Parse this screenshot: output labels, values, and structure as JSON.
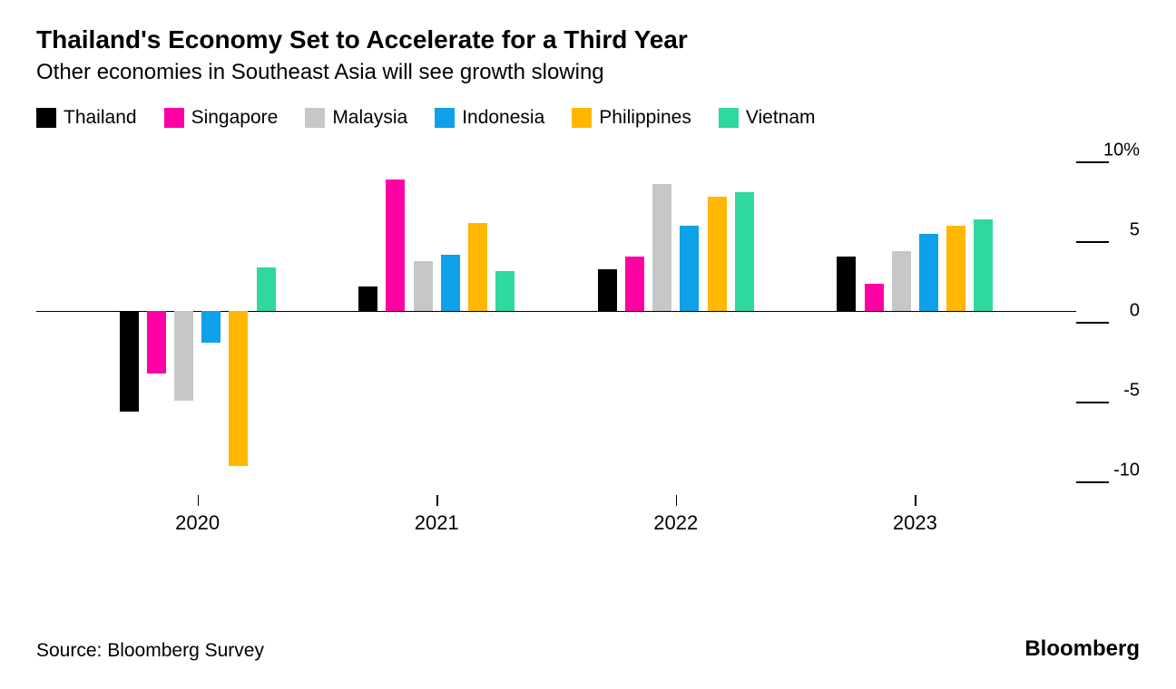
{
  "title": "Thailand's Economy Set to Accelerate for a Third Year",
  "subtitle": "Other economies in Southeast Asia will see growth slowing",
  "source": "Source: Bloomberg Survey",
  "brand": "Bloomberg",
  "chart": {
    "type": "bar",
    "y_axis": {
      "min": -11.5,
      "max": 10,
      "ticks": [
        {
          "value": 10,
          "label": "10%"
        },
        {
          "value": 5,
          "label": "5"
        },
        {
          "value": 0,
          "label": "0"
        },
        {
          "value": -5,
          "label": "-5"
        },
        {
          "value": -10,
          "label": "-10"
        }
      ]
    },
    "series": [
      {
        "name": "Thailand",
        "color": "#000000"
      },
      {
        "name": "Singapore",
        "color": "#ff00a5"
      },
      {
        "name": "Malaysia",
        "color": "#c7c7c9"
      },
      {
        "name": "Indonesia",
        "color": "#0ea0e8"
      },
      {
        "name": "Philippines",
        "color": "#ffb700"
      },
      {
        "name": "Vietnam",
        "color": "#2fd8a0"
      }
    ],
    "categories": [
      "2020",
      "2021",
      "2022",
      "2023"
    ],
    "data": {
      "2020": [
        -6.3,
        -3.9,
        -5.6,
        -2.0,
        -9.7,
        2.7
      ],
      "2021": [
        1.5,
        8.2,
        3.1,
        3.5,
        5.5,
        2.5
      ],
      "2022": [
        2.6,
        3.4,
        7.9,
        5.3,
        7.1,
        7.4
      ],
      "2023": [
        3.4,
        1.7,
        3.7,
        4.8,
        5.3,
        5.7
      ]
    },
    "layout": {
      "group_gap_pct": 8,
      "bar_gap_pct": 0.8,
      "title_fontsize": 28,
      "subtitle_fontsize": 24,
      "axis_fontsize": 20,
      "background_color": "#ffffff"
    }
  }
}
